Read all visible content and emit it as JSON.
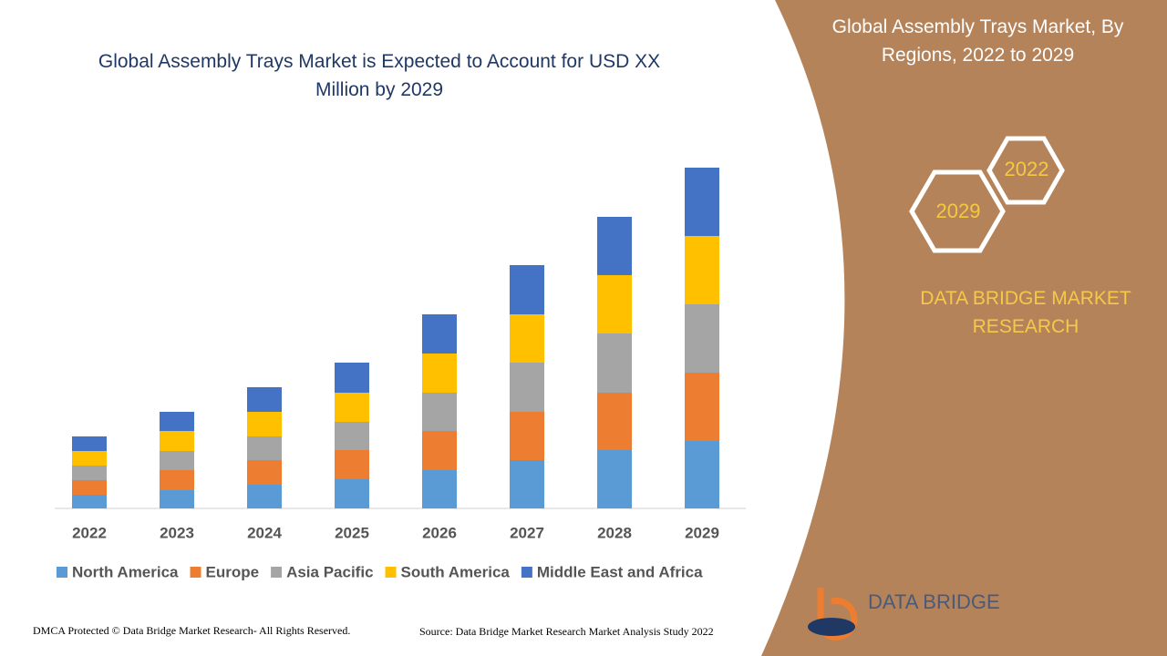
{
  "chart_data": {
    "type": "stacked-bar",
    "title": "Global Assembly Trays Market is Expected to Account for USD XX Million by 2029",
    "categories": [
      "2022",
      "2023",
      "2024",
      "2025",
      "2026",
      "2027",
      "2028",
      "2029"
    ],
    "series": [
      {
        "name": "North America",
        "color": "#5b9bd5",
        "values": [
          15,
          20,
          26,
          32,
          42,
          53,
          64,
          74
        ]
      },
      {
        "name": "Europe",
        "color": "#ed7d31",
        "values": [
          16,
          22,
          27,
          32,
          43,
          53,
          63,
          75
        ]
      },
      {
        "name": "Asia Pacific",
        "color": "#a5a5a5",
        "values": [
          16,
          21,
          26,
          31,
          42,
          54,
          65,
          75
        ]
      },
      {
        "name": "South America",
        "color": "#ffc000",
        "values": [
          16,
          22,
          27,
          32,
          43,
          53,
          64,
          75
        ]
      },
      {
        "name": "Middle East and Africa",
        "color": "#4472c4",
        "values": [
          16,
          21,
          27,
          33,
          43,
          54,
          64,
          75
        ]
      }
    ],
    "ylim": [
      0,
      400
    ],
    "legend": "bottom"
  },
  "panel": {
    "title": "Global Assembly Trays Market, By Regions, 2022 to 2029",
    "hex_start": "2022",
    "hex_end": "2029",
    "brand": "DATA BRIDGE MARKET RESEARCH"
  },
  "logo": {
    "text": "DATA BRIDGE"
  },
  "footer": {
    "left": "DMCA Protected © Data Bridge Market Research- All Rights Reserved.",
    "right": "Source: Data Bridge Market Research Market Analysis Study 2022"
  }
}
